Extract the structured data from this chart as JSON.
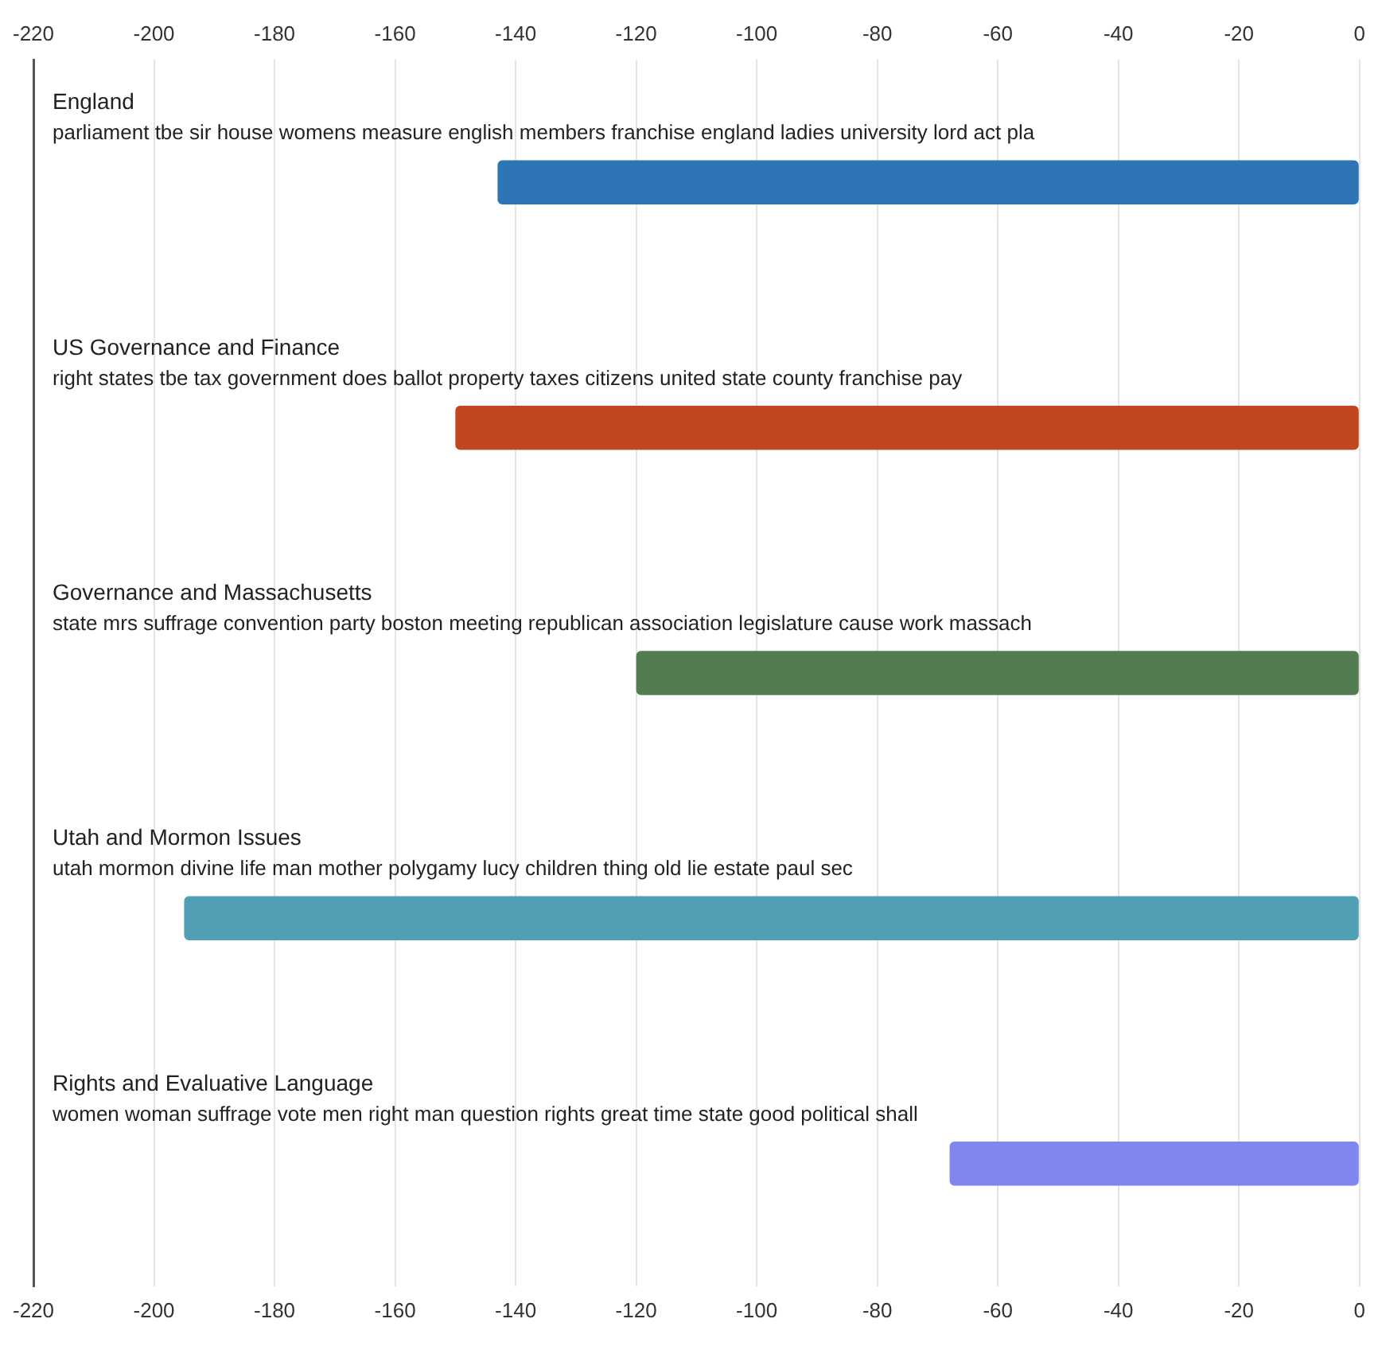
{
  "chart_data": {
    "type": "bar",
    "orientation": "horizontal",
    "categories": [
      "England",
      "US Governance and Finance",
      "Governance and Massachusetts",
      "Utah and Mormon Issues",
      "Rights and Evaluative Language"
    ],
    "values": [
      -143,
      -150,
      -120,
      -195,
      -68
    ],
    "colors": [
      "#2e75b6",
      "#c0471f",
      "#547c52",
      "#519fb5",
      "#8085f0"
    ],
    "xlim": [
      -220,
      0
    ],
    "xticks": [
      -220,
      -200,
      -180,
      -160,
      -140,
      -120,
      -100,
      -80,
      -60,
      -40,
      -20,
      0
    ],
    "x2lim": [
      -220,
      0
    ],
    "x2ticks": [
      -220,
      -200,
      -180,
      -160,
      -140,
      -120,
      -100,
      -80,
      -60,
      -40,
      -20,
      0
    ],
    "grid": "x",
    "legend": false,
    "annotations": [
      "parliament tbe sir house womens measure english members franchise england ladies university lord act pla",
      "right states tbe tax government does ballot property taxes citizens united state county franchise pay",
      "state mrs suffrage convention party boston meeting republican association legislature cause work massach",
      "utah mormon divine life man mother polygamy lucy children thing old lie estate paul sec",
      "women woman suffrage vote men right man question rights great time state good political shall"
    ]
  }
}
